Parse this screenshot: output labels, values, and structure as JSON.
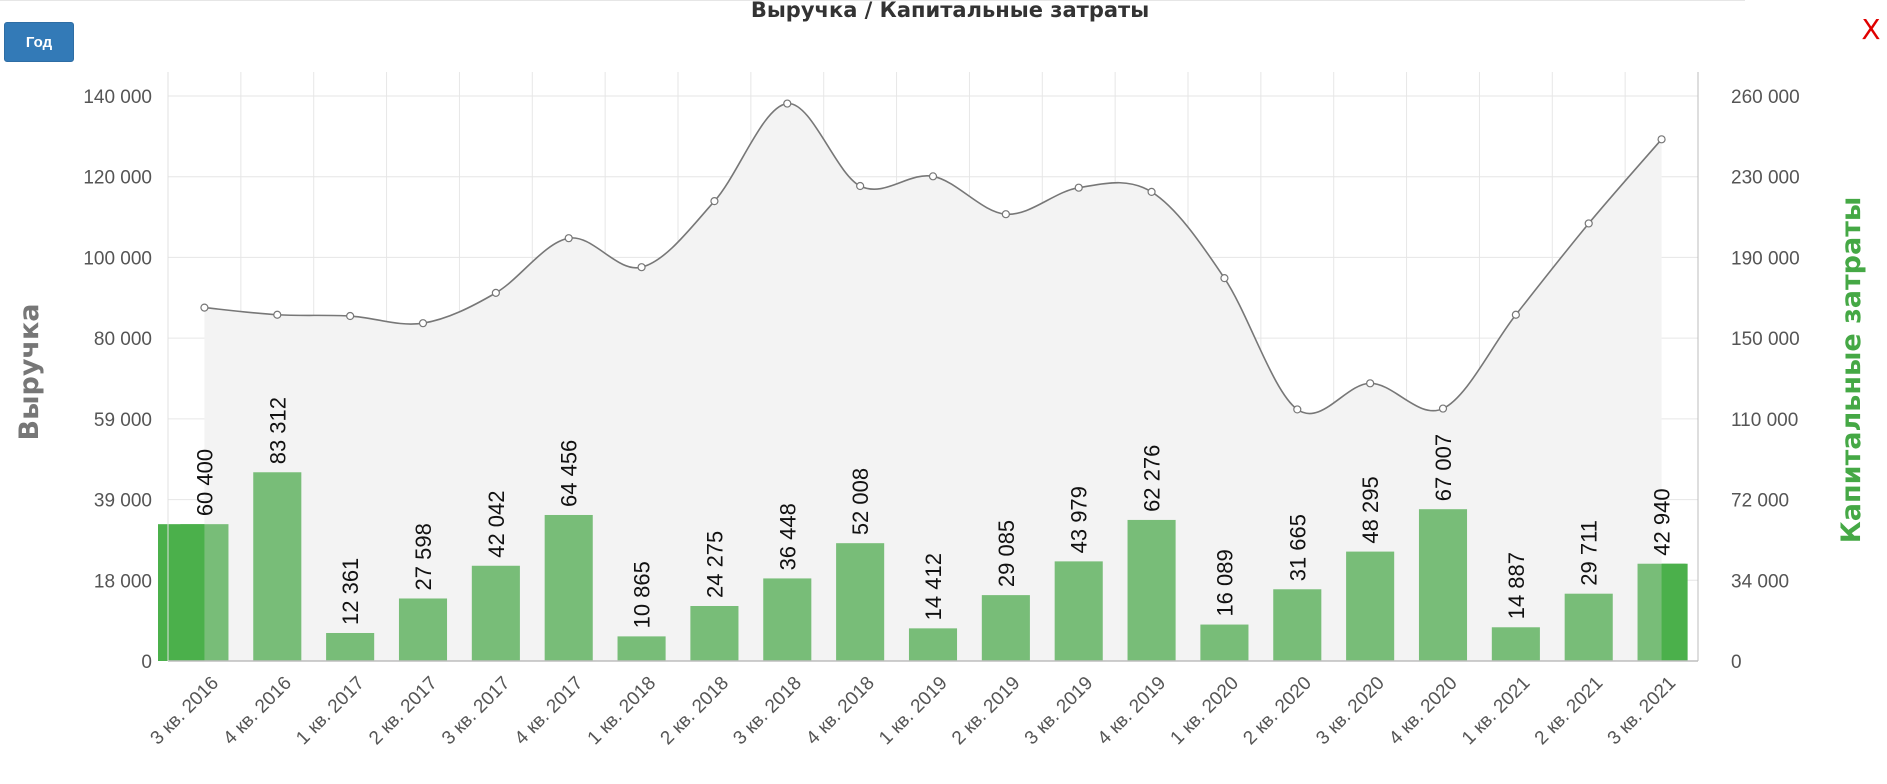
{
  "toolbar": {
    "period_label": "Год",
    "close_label": "X"
  },
  "chart_data": {
    "type": "bar+area",
    "title": "Выручка / Капитальные затраты",
    "categories": [
      "3 кв. 2016",
      "4 кв. 2016",
      "1 кв. 2017",
      "2 кв. 2017",
      "3 кв. 2017",
      "4 кв. 2017",
      "1 кв. 2018",
      "2 кв. 2018",
      "3 кв. 2018",
      "4 кв. 2018",
      "1 кв. 2019",
      "2 кв. 2019",
      "3 кв. 2019",
      "4 кв. 2019",
      "1 кв. 2020",
      "2 кв. 2020",
      "3 кв. 2020",
      "4 кв. 2020",
      "1 кв. 2021",
      "2 кв. 2021",
      "3 кв. 2021"
    ],
    "series": [
      {
        "name": "Капитальные затраты",
        "kind": "bar",
        "axis": "right",
        "values": [
          60400,
          83312,
          12361,
          27598,
          42042,
          64456,
          10865,
          24275,
          36448,
          52008,
          14412,
          29085,
          43979,
          62276,
          16089,
          31665,
          48295,
          67007,
          14887,
          29711,
          42940
        ],
        "labels": [
          "60 400",
          "83 312",
          "12 361",
          "27 598",
          "42 042",
          "64 456",
          "10 865",
          "24 275",
          "36 448",
          "52 008",
          "14 412",
          "29 085",
          "43 979",
          "62 276",
          "16 089",
          "31 665",
          "48 295",
          "67 007",
          "14 887",
          "29 711",
          "42 940"
        ],
        "color": "#78bd78"
      },
      {
        "name": "Выручка",
        "kind": "area",
        "axis": "left",
        "values": [
          84000,
          82300,
          82000,
          80300,
          87500,
          100500,
          93600,
          109300,
          132500,
          112900,
          115200,
          106200,
          112500,
          111500,
          91000,
          59800,
          66000,
          60000,
          82300,
          104000,
          124000
        ],
        "color": "#777777"
      }
    ],
    "y_left": {
      "label": "Выручка",
      "ticks": [
        "0",
        "18 000",
        "39 000",
        "59 000",
        "80 000",
        "100 000",
        "120 000",
        "140 000"
      ],
      "range": [
        0,
        140000
      ]
    },
    "y_right": {
      "label": "Капитальные затраты",
      "ticks": [
        "0",
        "34 000",
        "72 000",
        "110 000",
        "150 000",
        "190 000",
        "230 000",
        "260 000"
      ],
      "range": [
        0,
        260000
      ],
      "color": "#45a845"
    },
    "highlight_color": "#4bb04b",
    "grid": true
  }
}
